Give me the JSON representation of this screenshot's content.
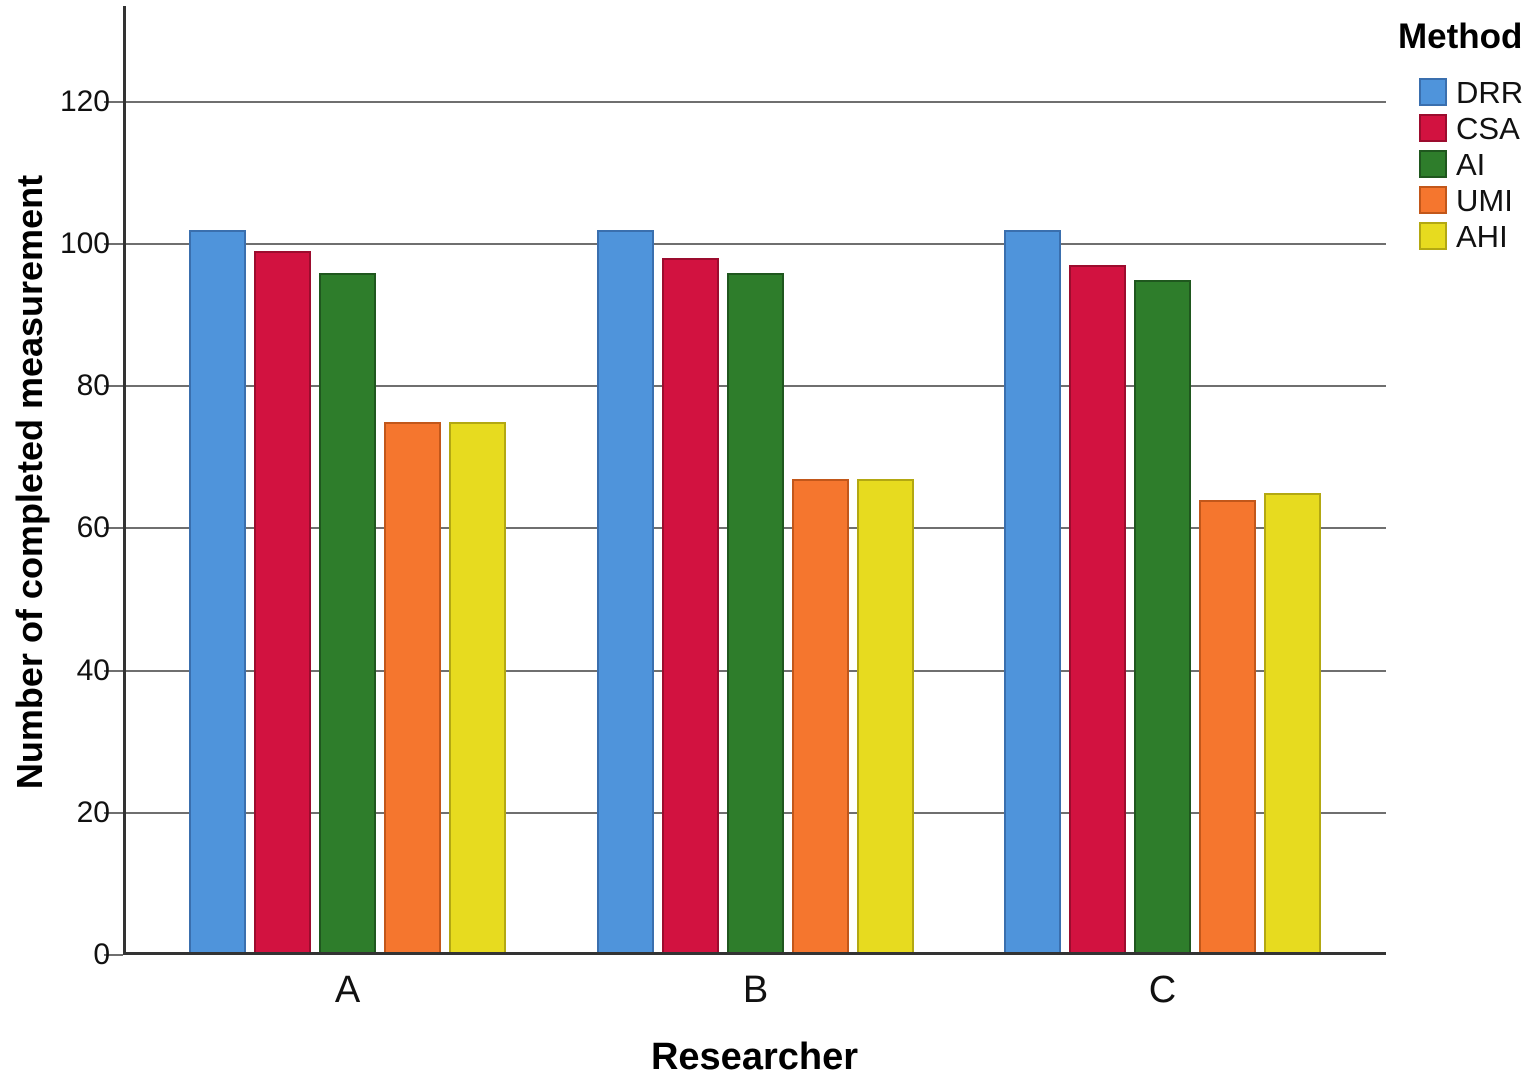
{
  "figure": {
    "background": "#ffffff",
    "axis_color": "#333333",
    "gridline_color": "#6f6f6f",
    "text_color": "#111111"
  },
  "chart_data": {
    "type": "bar",
    "title": "",
    "xlabel": "Researcher",
    "ylabel": "Number of completed measurement",
    "legend_title": "Method",
    "legend_position": "right",
    "grid": true,
    "categories": [
      "A",
      "B",
      "C"
    ],
    "series": [
      {
        "name": "DRR",
        "color": "#4f94db",
        "border_color": "#3a6fae",
        "values": [
          102,
          102,
          102
        ]
      },
      {
        "name": "CSA",
        "color": "#d21240",
        "border_color": "#9c0c2e",
        "values": [
          99,
          98,
          97
        ]
      },
      {
        "name": "AI",
        "color": "#2e7d2b",
        "border_color": "#1f571e",
        "values": [
          96,
          96,
          95
        ]
      },
      {
        "name": "UMI",
        "color": "#f5762e",
        "border_color": "#c2571a",
        "values": [
          75,
          67,
          64
        ]
      },
      {
        "name": "AHI",
        "color": "#e7db1f",
        "border_color": "#b3a812",
        "values": [
          75,
          67,
          65
        ]
      }
    ],
    "yticks": [
      0,
      20,
      40,
      60,
      80,
      100,
      120
    ],
    "ylim": [
      0,
      133.5
    ]
  }
}
